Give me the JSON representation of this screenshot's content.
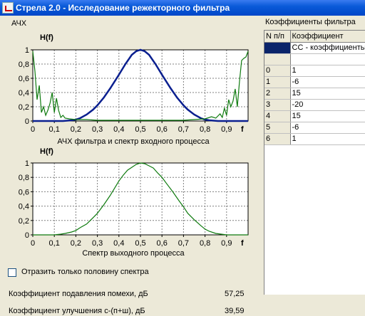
{
  "window": {
    "title": "Стрела 2.0 - Исследование режекторного фильтра",
    "icon": "app-icon"
  },
  "left_section_label": "АЧХ",
  "right_section_label": "Коэффициенты фильтра",
  "chart_data": [
    {
      "type": "line",
      "ylabel": "H(f)",
      "xlabel": "f",
      "caption": "АЧХ фильтра и спектр входного процесса",
      "xlim": [
        0,
        1
      ],
      "ylim": [
        0,
        1
      ],
      "x_ticks": [
        "0",
        "0,1",
        "0,2",
        "0,3",
        "0,4",
        "0,5",
        "0,6",
        "0,7",
        "0,8",
        "0,9"
      ],
      "y_ticks": [
        "0",
        "0,2",
        "0,4",
        "0,6",
        "0,8",
        "1"
      ],
      "grid": true,
      "series": [
        {
          "color": "#0a1f8f",
          "x": [
            0,
            0.05,
            0.1,
            0.14,
            0.18,
            0.2,
            0.22,
            0.25,
            0.28,
            0.3,
            0.33,
            0.36,
            0.4,
            0.43,
            0.46,
            0.48,
            0.5,
            0.52,
            0.54,
            0.57,
            0.6,
            0.64,
            0.67,
            0.7,
            0.72,
            0.75,
            0.78,
            0.8,
            0.82,
            0.86,
            0.9,
            0.95,
            1
          ],
          "y": [
            0,
            0,
            0,
            0,
            0.01,
            0.02,
            0.04,
            0.09,
            0.16,
            0.22,
            0.33,
            0.46,
            0.65,
            0.8,
            0.93,
            0.98,
            1,
            0.98,
            0.93,
            0.8,
            0.65,
            0.46,
            0.33,
            0.22,
            0.16,
            0.09,
            0.04,
            0.02,
            0.01,
            0,
            0,
            0,
            0
          ]
        },
        {
          "color": "#0e7a0e",
          "x": [
            0,
            0.01,
            0.02,
            0.03,
            0.04,
            0.05,
            0.06,
            0.07,
            0.08,
            0.09,
            0.1,
            0.11,
            0.12,
            0.13,
            0.14,
            0.15,
            0.17,
            0.2,
            0.25,
            0.3,
            0.35,
            0.4,
            0.45,
            0.5,
            0.55,
            0.6,
            0.65,
            0.7,
            0.75,
            0.8,
            0.83,
            0.85,
            0.87,
            0.88,
            0.89,
            0.9,
            0.91,
            0.92,
            0.93,
            0.94,
            0.95,
            0.96,
            0.97,
            0.98,
            0.99,
            1
          ],
          "y": [
            0.98,
            0.7,
            0.3,
            0.5,
            0.12,
            0.2,
            0.08,
            0.15,
            0.25,
            0.4,
            0.12,
            0.32,
            0.15,
            0.05,
            0.08,
            0.04,
            0.03,
            0.02,
            0.02,
            0.01,
            0.01,
            0.01,
            0.01,
            0.01,
            0.01,
            0.01,
            0.01,
            0.01,
            0.02,
            0.03,
            0.06,
            0.04,
            0.1,
            0.05,
            0.18,
            0.08,
            0.3,
            0.2,
            0.28,
            0.45,
            0.2,
            0.55,
            0.85,
            0.88,
            0.9,
            0.98
          ]
        }
      ]
    },
    {
      "type": "line",
      "ylabel": "H(f)",
      "xlabel": "f",
      "caption": "Спектр выходного процесса",
      "xlim": [
        0,
        1
      ],
      "ylim": [
        0,
        1
      ],
      "x_ticks": [
        "0",
        "0,1",
        "0,2",
        "0,3",
        "0,4",
        "0,5",
        "0,6",
        "0,7",
        "0,8",
        "0,9"
      ],
      "y_ticks": [
        "0",
        "0,2",
        "0,4",
        "0,6",
        "0,8",
        "1"
      ],
      "grid": true,
      "series": [
        {
          "color": "#0e7a0e",
          "x": [
            0,
            0.1,
            0.13,
            0.15,
            0.18,
            0.2,
            0.22,
            0.25,
            0.28,
            0.3,
            0.33,
            0.36,
            0.38,
            0.4,
            0.42,
            0.44,
            0.46,
            0.48,
            0.5,
            0.52,
            0.54,
            0.56,
            0.58,
            0.6,
            0.62,
            0.65,
            0.68,
            0.7,
            0.72,
            0.75,
            0.78,
            0.8,
            0.82,
            0.85,
            0.9,
            1
          ],
          "y": [
            0,
            0,
            0.01,
            0.02,
            0.04,
            0.06,
            0.1,
            0.15,
            0.24,
            0.3,
            0.42,
            0.55,
            0.65,
            0.75,
            0.83,
            0.9,
            0.94,
            0.98,
            1,
            0.99,
            0.96,
            0.93,
            0.86,
            0.8,
            0.72,
            0.6,
            0.47,
            0.39,
            0.3,
            0.21,
            0.13,
            0.08,
            0.05,
            0.02,
            0,
            0
          ]
        }
      ]
    }
  ],
  "coef_table": {
    "headers": [
      "N п/п",
      "Коэффициент"
    ],
    "selected_row": [
      "",
      "СС - коэффициенты"
    ],
    "rows": [
      [
        "0",
        "1"
      ],
      [
        "1",
        "-6"
      ],
      [
        "2",
        "15"
      ],
      [
        "3",
        "-20"
      ],
      [
        "4",
        "15"
      ],
      [
        "5",
        "-6"
      ],
      [
        "6",
        "1"
      ]
    ]
  },
  "half_spectrum_checkbox": {
    "label": "Отразить только половину спектра",
    "checked": false
  },
  "metrics": [
    {
      "label": "Коэффициент подавления помехи, дБ",
      "value": "57,25"
    },
    {
      "label": "Коэффициент улучшения с-(п+ш), дБ",
      "value": "39,59"
    }
  ]
}
